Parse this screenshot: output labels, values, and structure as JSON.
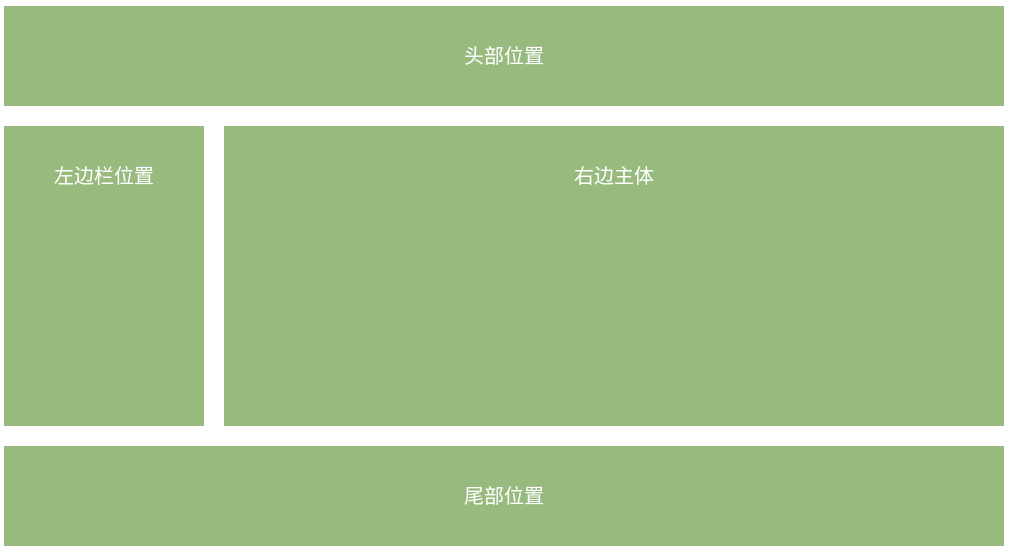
{
  "header": {
    "label": "头部位置"
  },
  "sidebar": {
    "label": "左边栏位置"
  },
  "main": {
    "label": "右边主体"
  },
  "footer": {
    "label": "尾部位置"
  },
  "colors": {
    "block": "#98ba7e",
    "text": "#ffffff",
    "background": "#ffffff"
  }
}
